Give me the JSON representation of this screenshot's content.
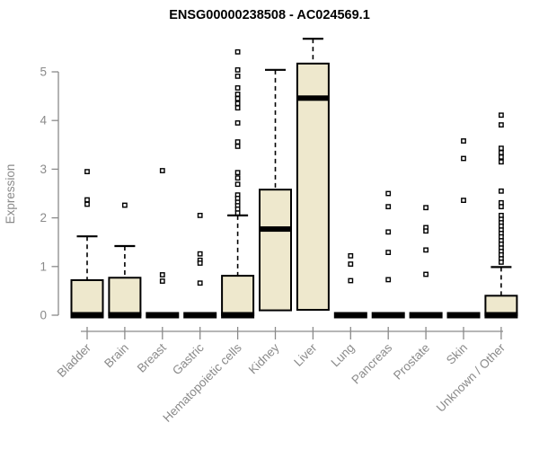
{
  "chart_data": {
    "type": "boxplot",
    "title": "ENSG00000238508 - AC024569.1",
    "xlabel": "",
    "ylabel": "Expression",
    "ylim": [
      0,
      5.8
    ],
    "yticks": [
      0,
      1,
      2,
      3,
      4,
      5
    ],
    "grid": false,
    "legend": null,
    "categories": [
      "Bladder",
      "Brain",
      "Breast",
      "Gastric",
      "Hematopoietic cells",
      "Kidney",
      "Liver",
      "Lung",
      "Pancreas",
      "Prostate",
      "Skin",
      "Unknown / Other"
    ],
    "series": [
      {
        "category": "Bladder",
        "q1": 0,
        "median": 0.02,
        "q3": 0.72,
        "whisker_low": 0,
        "whisker_high": 1.62,
        "outliers": [
          2.95,
          2.37,
          2.28
        ]
      },
      {
        "category": "Brain",
        "q1": 0,
        "median": 0.02,
        "q3": 0.77,
        "whisker_low": 0,
        "whisker_high": 1.42,
        "outliers": [
          2.26
        ]
      },
      {
        "category": "Breast",
        "q1": 0,
        "median": 0.02,
        "q3": 0.03,
        "whisker_low": 0,
        "whisker_high": 0.03,
        "outliers": [
          2.97,
          0.83,
          0.7
        ]
      },
      {
        "category": "Gastric",
        "q1": 0,
        "median": 0.02,
        "q3": 0.03,
        "whisker_low": 0,
        "whisker_high": 0.03,
        "outliers": [
          2.05,
          1.26,
          1.13,
          1.07,
          0.66
        ]
      },
      {
        "category": "Hematopoietic cells",
        "q1": 0,
        "median": 0.02,
        "q3": 0.81,
        "whisker_low": 0,
        "whisker_high": 2.05,
        "outliers": [
          5.41,
          5.04,
          4.91,
          4.67,
          4.54,
          4.45,
          4.35,
          4.26,
          3.95,
          3.56,
          3.47,
          2.93,
          2.82,
          2.69,
          2.47,
          2.4,
          2.32,
          2.25,
          2.18,
          2.1
        ]
      },
      {
        "category": "Kidney",
        "q1": 0.1,
        "median": 1.77,
        "q3": 2.58,
        "whisker_low": 0.1,
        "whisker_high": 5.04,
        "outliers": []
      },
      {
        "category": "Liver",
        "q1": 0.11,
        "median": 4.46,
        "q3": 5.17,
        "whisker_low": 0.11,
        "whisker_high": 5.68,
        "outliers": []
      },
      {
        "category": "Lung",
        "q1": 0,
        "median": 0.02,
        "q3": 0.03,
        "whisker_low": 0,
        "whisker_high": 0.03,
        "outliers": [
          1.22,
          1.05,
          0.71
        ]
      },
      {
        "category": "Pancreas",
        "q1": 0,
        "median": 0.02,
        "q3": 0.03,
        "whisker_low": 0,
        "whisker_high": 0.03,
        "outliers": [
          2.5,
          2.23,
          1.71,
          1.29,
          0.73
        ]
      },
      {
        "category": "Prostate",
        "q1": 0,
        "median": 0.02,
        "q3": 0.03,
        "whisker_low": 0,
        "whisker_high": 0.03,
        "outliers": [
          2.21,
          1.8,
          1.73,
          1.34,
          0.84
        ]
      },
      {
        "category": "Skin",
        "q1": 0,
        "median": 0.02,
        "q3": 0.03,
        "whisker_low": 0,
        "whisker_high": 0.03,
        "outliers": [
          3.58,
          3.22,
          2.36
        ]
      },
      {
        "category": "Unknown / Other",
        "q1": 0,
        "median": 0.02,
        "q3": 0.4,
        "whisker_low": 0,
        "whisker_high": 0.99,
        "outliers": [
          4.11,
          3.91,
          3.43,
          3.34,
          3.25,
          3.15,
          2.55,
          2.31,
          2.23,
          2.05,
          1.97,
          1.9,
          1.83,
          1.75,
          1.68,
          1.61,
          1.53,
          1.46,
          1.38,
          1.31,
          1.24,
          1.16,
          1.09
        ]
      }
    ],
    "style": {
      "box_fill": "#EEE8CD",
      "box_border": "#000000",
      "median_color": "#000000",
      "whisker_color": "#000000",
      "outlier_color": "#000000",
      "axis_color": "#8A8A8A",
      "tick_label_color": "#8A8A8A",
      "title_color": "#000000"
    }
  }
}
